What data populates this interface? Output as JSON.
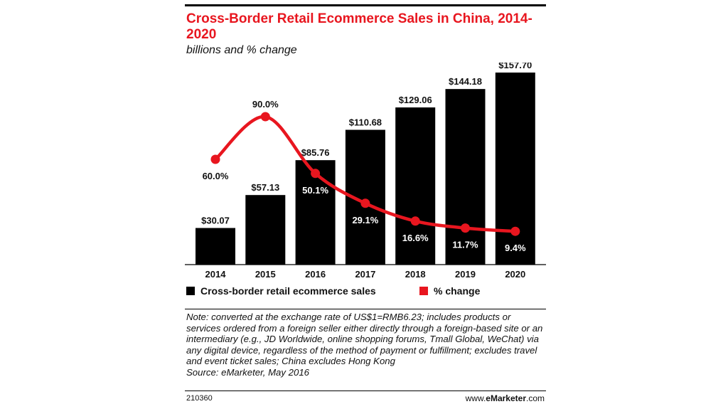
{
  "title": "Cross-Border Retail Ecommerce Sales in China, 2014-2020",
  "subtitle": "billions and % change",
  "chart_data": {
    "type": "bar",
    "categories": [
      "2014",
      "2015",
      "2016",
      "2017",
      "2018",
      "2019",
      "2020"
    ],
    "series": [
      {
        "name": "Cross-border retail ecommerce sales",
        "type": "bar",
        "values": [
          30.07,
          57.13,
          85.76,
          110.68,
          129.06,
          144.18,
          157.7
        ],
        "labels": [
          "$30.07",
          "$57.13",
          "$85.76",
          "$110.68",
          "$129.06",
          "$144.18",
          "$157.70"
        ],
        "color": "#000000"
      },
      {
        "name": "% change",
        "type": "line",
        "values": [
          60.0,
          90.0,
          50.1,
          29.1,
          16.6,
          11.7,
          9.4
        ],
        "labels": [
          "60.0%",
          "90.0%",
          "50.1%",
          "29.1%",
          "16.6%",
          "11.7%",
          "9.4%"
        ],
        "color": "#e8161f"
      }
    ],
    "grid": false,
    "legend": "bottom"
  },
  "note": "Note: converted at the exchange rate of US$1=RMB6.23; includes products or services ordered from a foreign seller either directly through a foreign-based site or an intermediary (e.g., JD Worldwide, online shopping forums, Tmall Global, WeChat) via any digital device, regardless of the method of payment or fulfillment; excludes travel and event ticket sales; China excludes Hong Kong",
  "source": "Source: eMarketer, May 2016",
  "code": "210360",
  "brand": {
    "prefix": "www.",
    "name": "eMarketer",
    "suffix": ".com"
  }
}
